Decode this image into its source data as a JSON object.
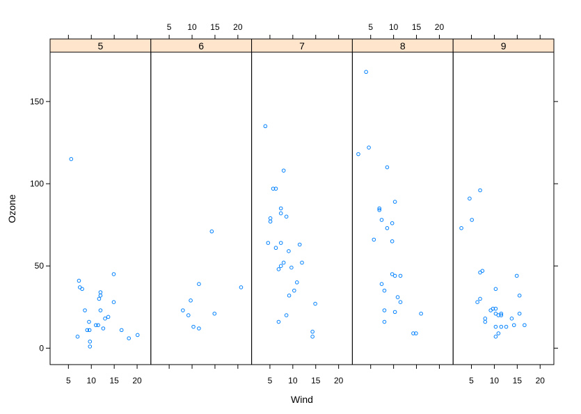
{
  "chart_data": {
    "type": "scatter",
    "xlabel": "Wind",
    "ylabel": "Ozone",
    "xlim": [
      1.0,
      23.0
    ],
    "ylim": [
      -10,
      180
    ],
    "x_ticks": [
      5,
      10,
      15,
      20
    ],
    "y_ticks": [
      0,
      50,
      100,
      150
    ],
    "panels": [
      {
        "label": "5",
        "points": [
          [
            5.6,
            115
          ],
          [
            7.0,
            7
          ],
          [
            7.3,
            41
          ],
          [
            7.5,
            37
          ],
          [
            8.0,
            36
          ],
          [
            8.6,
            23
          ],
          [
            9.1,
            11
          ],
          [
            9.6,
            11
          ],
          [
            9.5,
            16
          ],
          [
            9.7,
            4
          ],
          [
            9.7,
            1
          ],
          [
            11.0,
            14
          ],
          [
            11.5,
            14
          ],
          [
            11.7,
            30
          ],
          [
            12.0,
            32
          ],
          [
            12.0,
            34
          ],
          [
            12.0,
            23
          ],
          [
            12.6,
            12
          ],
          [
            13.0,
            18
          ],
          [
            13.7,
            19
          ],
          [
            14.9,
            45
          ],
          [
            14.9,
            28
          ],
          [
            16.6,
            11
          ],
          [
            18.2,
            6
          ],
          [
            20.1,
            8
          ]
        ]
      },
      {
        "label": "6",
        "points": [
          [
            8.0,
            23
          ],
          [
            9.2,
            20
          ],
          [
            9.7,
            29
          ],
          [
            10.3,
            13
          ],
          [
            11.5,
            39
          ],
          [
            11.5,
            12
          ],
          [
            14.3,
            71
          ],
          [
            14.9,
            21
          ],
          [
            20.7,
            37
          ]
        ]
      },
      {
        "label": "7",
        "points": [
          [
            4.0,
            135
          ],
          [
            4.6,
            64
          ],
          [
            5.1,
            79
          ],
          [
            5.1,
            77
          ],
          [
            5.7,
            97
          ],
          [
            6.3,
            97
          ],
          [
            6.3,
            61
          ],
          [
            6.9,
            16
          ],
          [
            6.9,
            48
          ],
          [
            7.4,
            50
          ],
          [
            7.4,
            85
          ],
          [
            7.4,
            82
          ],
          [
            7.4,
            64
          ],
          [
            8.0,
            108
          ],
          [
            8.0,
            52
          ],
          [
            8.6,
            80
          ],
          [
            8.6,
            20
          ],
          [
            9.1,
            59
          ],
          [
            9.2,
            32
          ],
          [
            9.7,
            49
          ],
          [
            10.3,
            35
          ],
          [
            10.9,
            40
          ],
          [
            11.5,
            63
          ],
          [
            12.0,
            52
          ],
          [
            14.3,
            10
          ],
          [
            14.3,
            7
          ],
          [
            14.9,
            27
          ]
        ]
      },
      {
        "label": "8",
        "points": [
          [
            2.3,
            118
          ],
          [
            4.0,
            168
          ],
          [
            4.6,
            122
          ],
          [
            5.7,
            66
          ],
          [
            6.9,
            84
          ],
          [
            6.9,
            85
          ],
          [
            7.4,
            78
          ],
          [
            7.4,
            39
          ],
          [
            8.0,
            35
          ],
          [
            8.0,
            23
          ],
          [
            8.0,
            16
          ],
          [
            8.6,
            73
          ],
          [
            8.6,
            110
          ],
          [
            9.7,
            76
          ],
          [
            9.7,
            65
          ],
          [
            9.7,
            45
          ],
          [
            10.3,
            44
          ],
          [
            10.3,
            89
          ],
          [
            10.3,
            22
          ],
          [
            10.9,
            31
          ],
          [
            11.5,
            28
          ],
          [
            11.5,
            44
          ],
          [
            14.3,
            9
          ],
          [
            14.9,
            9
          ],
          [
            16.0,
            21
          ]
        ]
      },
      {
        "label": "9",
        "points": [
          [
            2.8,
            73
          ],
          [
            4.6,
            91
          ],
          [
            5.1,
            78
          ],
          [
            6.3,
            28
          ],
          [
            6.9,
            96
          ],
          [
            6.9,
            46
          ],
          [
            7.4,
            47
          ],
          [
            6.9,
            30
          ],
          [
            8.0,
            18
          ],
          [
            8.0,
            16
          ],
          [
            9.2,
            23
          ],
          [
            9.7,
            24
          ],
          [
            10.3,
            24
          ],
          [
            10.3,
            36
          ],
          [
            10.3,
            21
          ],
          [
            10.3,
            13
          ],
          [
            10.3,
            7
          ],
          [
            10.9,
            20
          ],
          [
            10.9,
            9
          ],
          [
            11.5,
            21
          ],
          [
            11.5,
            20
          ],
          [
            11.5,
            13
          ],
          [
            12.6,
            13
          ],
          [
            13.8,
            18
          ],
          [
            14.3,
            14
          ],
          [
            14.9,
            44
          ],
          [
            15.5,
            32
          ],
          [
            15.5,
            21
          ],
          [
            16.6,
            14
          ]
        ]
      }
    ]
  },
  "colors": {
    "point": "#0080ff",
    "strip_bg": "#ffe5cc",
    "frame": "#000000"
  }
}
